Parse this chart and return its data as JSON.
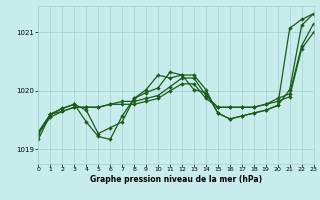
{
  "title": "Graphe pression niveau de la mer (hPa)",
  "bg_color": "#c8ecec",
  "grid_color": "#a0d0d0",
  "line_color": "#1a5c1a",
  "ylim": [
    1018.75,
    1021.45
  ],
  "xlim": [
    0,
    23
  ],
  "yticks": [
    1019,
    1020,
    1021
  ],
  "xticks": [
    0,
    1,
    2,
    3,
    4,
    5,
    6,
    7,
    8,
    9,
    10,
    11,
    12,
    13,
    14,
    15,
    16,
    17,
    18,
    19,
    20,
    21,
    22,
    23
  ],
  "series1": [
    1019.3,
    1019.6,
    1019.65,
    1019.72,
    1019.72,
    1019.72,
    1019.77,
    1019.82,
    1019.82,
    1019.87,
    1019.92,
    1020.07,
    1020.22,
    1020.22,
    1019.92,
    1019.72,
    1019.72,
    1019.72,
    1019.72,
    1019.77,
    1019.87,
    1019.95,
    1020.77,
    1021.15
  ],
  "series2": [
    1019.27,
    1019.6,
    1019.7,
    1019.77,
    1019.47,
    1019.22,
    1019.17,
    1019.57,
    1019.87,
    1019.97,
    1020.05,
    1020.32,
    1020.27,
    1020.27,
    1020.02,
    1019.62,
    1019.52,
    1019.57,
    1019.62,
    1019.67,
    1019.75,
    1021.07,
    1021.22,
    1021.32
  ],
  "series3": [
    1019.17,
    1019.6,
    1019.7,
    1019.77,
    1019.67,
    1019.27,
    1019.37,
    1019.47,
    1019.87,
    1020.02,
    1020.27,
    1020.22,
    1020.27,
    1020.02,
    1019.97,
    1019.62,
    1019.52,
    1019.57,
    1019.62,
    1019.67,
    1019.75,
    1020.02,
    1021.12,
    1021.32
  ],
  "series4": [
    1019.27,
    1019.55,
    1019.65,
    1019.72,
    1019.72,
    1019.72,
    1019.77,
    1019.77,
    1019.77,
    1019.82,
    1019.87,
    1020.0,
    1020.12,
    1020.12,
    1019.87,
    1019.72,
    1019.72,
    1019.72,
    1019.72,
    1019.77,
    1019.82,
    1019.9,
    1020.72,
    1021.0
  ]
}
